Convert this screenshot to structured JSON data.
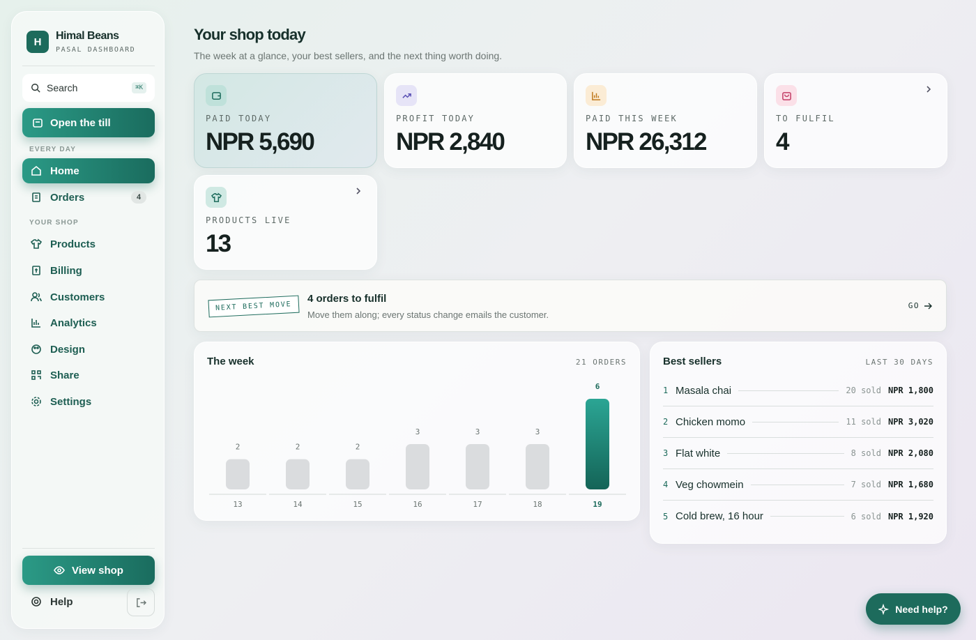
{
  "brand": {
    "initial": "H",
    "name": "Himal Beans",
    "subtitle": "PASAL DASHBOARD"
  },
  "search": {
    "placeholder": "Search",
    "shortcut": "⌘K"
  },
  "primary_action": "Open the till",
  "nav": {
    "sections": [
      {
        "title": "EVERY DAY",
        "items": [
          {
            "label": "Home"
          },
          {
            "label": "Orders",
            "badge": 4
          }
        ]
      },
      {
        "title": "YOUR SHOP",
        "items": [
          {
            "label": "Products"
          },
          {
            "label": "Billing"
          },
          {
            "label": "Customers"
          },
          {
            "label": "Analytics"
          },
          {
            "label": "Design"
          },
          {
            "label": "Share"
          },
          {
            "label": "Settings"
          }
        ]
      }
    ]
  },
  "footer": {
    "view_shop": "View shop",
    "help": "Help"
  },
  "header": {
    "title": "Your shop today",
    "subtitle": "The week at a glance, your best sellers, and the next thing worth doing."
  },
  "stats": [
    {
      "label": "PAID TODAY",
      "value": "NPR 5,690"
    },
    {
      "label": "PROFIT TODAY",
      "value": "NPR 2,840"
    },
    {
      "label": "PAID THIS WEEK",
      "value": "NPR 26,312"
    },
    {
      "label": "TO FULFIL",
      "value": "4"
    },
    {
      "label": "PRODUCTS LIVE",
      "value": "13"
    }
  ],
  "next_best_move": {
    "tag": "NEXT BEST MOVE",
    "title": "4 orders to fulfil",
    "text": "Move them along; every status change emails the customer.",
    "action": "GO"
  },
  "week": {
    "title": "The week",
    "summary": "21 ORDERS",
    "days": [
      13,
      14,
      15,
      16,
      17,
      18,
      19
    ],
    "orders": [
      2,
      2,
      2,
      3,
      3,
      3,
      6
    ]
  },
  "best_sellers": {
    "title": "Best sellers",
    "period": "LAST 30 DAYS",
    "items": [
      {
        "rank": 1,
        "name": "Masala chai",
        "sold": "20 sold",
        "revenue": "NPR 1,800"
      },
      {
        "rank": 2,
        "name": "Chicken momo",
        "sold": "11 sold",
        "revenue": "NPR 3,020"
      },
      {
        "rank": 3,
        "name": "Flat white",
        "sold": "8 sold",
        "revenue": "NPR 2,080"
      },
      {
        "rank": 4,
        "name": "Veg chowmein",
        "sold": "7 sold",
        "revenue": "NPR 1,680"
      },
      {
        "rank": 5,
        "name": "Cold brew, 16 hour",
        "sold": "6 sold",
        "revenue": "NPR 1,920"
      }
    ]
  },
  "help_button": "Need help?"
}
